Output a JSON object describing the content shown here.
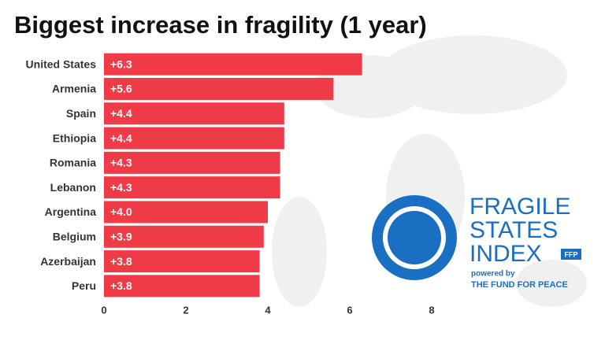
{
  "chart_data": {
    "type": "bar",
    "orientation": "horizontal",
    "title": "Biggest increase in fragility (1 year)",
    "categories": [
      "United States",
      "Armenia",
      "Spain",
      "Ethiopia",
      "Romania",
      "Lebanon",
      "Argentina",
      "Belgium",
      "Azerbaijan",
      "Peru"
    ],
    "values": [
      6.3,
      5.6,
      4.4,
      4.4,
      4.3,
      4.3,
      4.0,
      3.9,
      3.8,
      3.8
    ],
    "value_labels": [
      "+6.3",
      "+5.6",
      "+4.4",
      "+4.4",
      "+4.3",
      "+4.3",
      "+4.0",
      "+3.9",
      "+3.8",
      "+3.8"
    ],
    "color": "#ef3a47",
    "xlim": [
      0,
      8
    ],
    "xticks": [
      0,
      2,
      4,
      6,
      8
    ],
    "grid": false
  },
  "logo": {
    "line1": "FRAGILE",
    "line2": "STATES",
    "line3": "INDEX",
    "badge": "FFP",
    "powered": "powered by",
    "org": "THE FUND FOR PEACE"
  }
}
